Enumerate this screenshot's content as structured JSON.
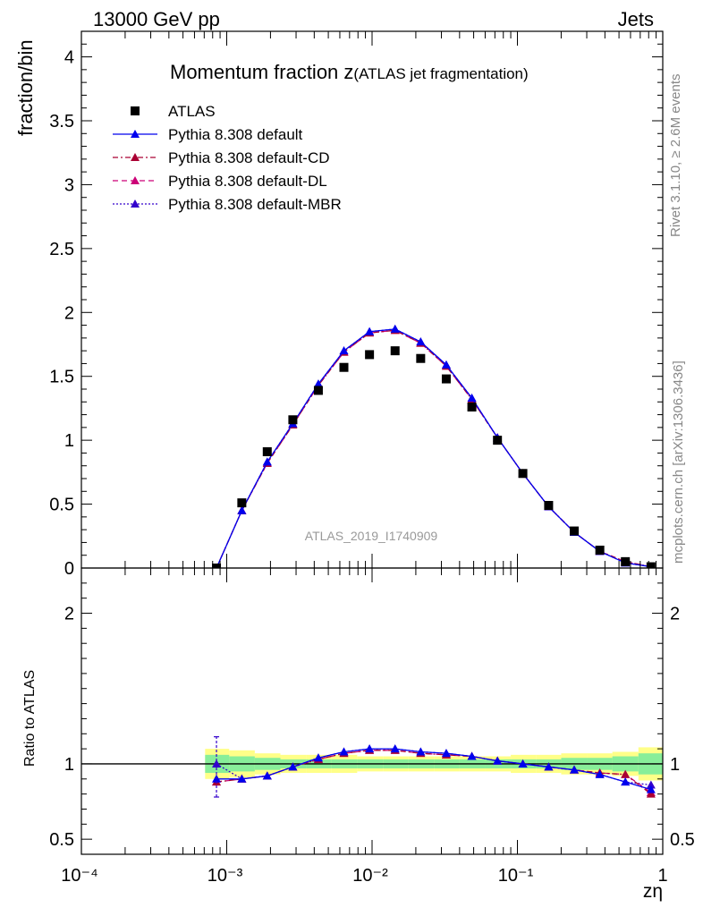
{
  "header": {
    "left": "13000 GeV pp",
    "right": "Jets"
  },
  "title": {
    "main": "Momentum fraction z",
    "sub": "(ATLAS jet fragmentation)"
  },
  "side_labels": {
    "rivet": "Rivet 3.1.10, ≥ 2.6M events",
    "mcplots": "mcplots.cern.ch [arXiv:1306.3436]"
  },
  "watermark": "ATLAS_2019_I1740909",
  "colors": {
    "data": "#000000",
    "default": "#0000ee",
    "cd": "#aa0033",
    "dl": "#cc0077",
    "mbr": "#3300cc",
    "band_inner": "#88ee99",
    "band_outer": "#ffff88"
  },
  "chart_data": [
    {
      "type": "scatter",
      "panel": "main",
      "ylabel": "fraction/bin",
      "xlabel": "zη",
      "xscale": "log",
      "xlim": [
        0.0001,
        1
      ],
      "ylim": [
        0,
        4.2
      ],
      "yticks": [
        "0",
        "0.5",
        "1",
        "1.5",
        "2",
        "2.5",
        "3",
        "3.5",
        "4"
      ],
      "xticks": [
        "10⁻⁴",
        "10⁻³",
        "10⁻²",
        "10⁻¹",
        "1"
      ],
      "legend_position": "top-left",
      "x": [
        0.00085,
        0.00127,
        0.0019,
        0.00285,
        0.00427,
        0.0064,
        0.0096,
        0.0144,
        0.0216,
        0.0324,
        0.0486,
        0.0729,
        0.109,
        0.164,
        0.246,
        0.369,
        0.553,
        0.83
      ],
      "series": [
        {
          "name": "ATLAS",
          "key": "data",
          "marker": "square",
          "line": "none",
          "values": [
            0.0,
            0.51,
            0.91,
            1.16,
            1.39,
            1.57,
            1.67,
            1.7,
            1.64,
            1.48,
            1.26,
            1.0,
            0.74,
            0.49,
            0.29,
            0.14,
            0.05,
            0.01
          ]
        },
        {
          "name": "Pythia 8.308 default",
          "key": "default",
          "marker": "triangle",
          "line": "solid",
          "values": [
            0.0,
            0.45,
            0.83,
            1.13,
            1.44,
            1.7,
            1.85,
            1.87,
            1.77,
            1.59,
            1.33,
            1.02,
            0.74,
            0.48,
            0.28,
            0.13,
            0.04,
            0.01
          ]
        },
        {
          "name": "Pythia 8.308 default-CD",
          "key": "cd",
          "marker": "triangle",
          "line": "dashdot",
          "values": [
            0.0,
            0.45,
            0.82,
            1.12,
            1.43,
            1.69,
            1.84,
            1.86,
            1.76,
            1.58,
            1.32,
            1.02,
            0.74,
            0.48,
            0.28,
            0.13,
            0.05,
            0.01
          ]
        },
        {
          "name": "Pythia 8.308 default-DL",
          "key": "dl",
          "marker": "triangle",
          "line": "dashed",
          "values": [
            0.0,
            0.45,
            0.82,
            1.12,
            1.43,
            1.69,
            1.84,
            1.86,
            1.76,
            1.58,
            1.32,
            1.02,
            0.74,
            0.48,
            0.28,
            0.13,
            0.05,
            0.01
          ]
        },
        {
          "name": "Pythia 8.308 default-MBR",
          "key": "mbr",
          "marker": "triangle",
          "line": "dotted",
          "values": [
            0.0,
            0.45,
            0.83,
            1.13,
            1.44,
            1.7,
            1.85,
            1.87,
            1.77,
            1.59,
            1.33,
            1.02,
            0.74,
            0.48,
            0.28,
            0.13,
            0.04,
            0.01
          ]
        }
      ]
    },
    {
      "type": "line",
      "panel": "ratio",
      "ylabel": "Ratio to ATLAS",
      "xlabel": "zη",
      "xscale": "log",
      "xlim": [
        0.0001,
        1
      ],
      "ylim": [
        0.4,
        2.3
      ],
      "yticks": [
        "0.5",
        "1",
        "2"
      ],
      "x": [
        0.00085,
        0.00127,
        0.0019,
        0.00285,
        0.00427,
        0.0064,
        0.0096,
        0.0144,
        0.0216,
        0.0324,
        0.0486,
        0.0729,
        0.109,
        0.164,
        0.246,
        0.369,
        0.553,
        0.83
      ],
      "bands": {
        "edges": [
          0.00071,
          0.00104,
          0.00156,
          0.00234,
          0.00351,
          0.00527,
          0.0079,
          0.0119,
          0.0178,
          0.0267,
          0.04,
          0.06,
          0.09,
          0.135,
          0.2,
          0.3,
          0.45,
          0.68,
          1.0
        ],
        "inner": [
          0.06,
          0.05,
          0.04,
          0.03,
          0.03,
          0.03,
          0.03,
          0.03,
          0.03,
          0.03,
          0.03,
          0.03,
          0.03,
          0.03,
          0.04,
          0.04,
          0.05,
          0.07
        ],
        "outer": [
          0.1,
          0.09,
          0.07,
          0.06,
          0.06,
          0.06,
          0.05,
          0.05,
          0.05,
          0.05,
          0.05,
          0.05,
          0.06,
          0.06,
          0.07,
          0.07,
          0.08,
          0.11
        ]
      },
      "series": [
        {
          "name": "Pythia 8.308 default",
          "key": "default",
          "values": [
            0.9,
            0.9,
            0.92,
            0.98,
            1.04,
            1.08,
            1.1,
            1.1,
            1.08,
            1.07,
            1.05,
            1.02,
            1.0,
            0.98,
            0.96,
            0.93,
            0.88,
            0.83
          ]
        },
        {
          "name": "Pythia 8.308 default-CD",
          "key": "cd",
          "values": [
            0.88,
            0.9,
            0.92,
            0.98,
            1.03,
            1.07,
            1.09,
            1.09,
            1.07,
            1.06,
            1.05,
            1.02,
            1.0,
            0.98,
            0.96,
            0.94,
            0.93,
            0.8
          ]
        },
        {
          "name": "Pythia 8.308 default-DL",
          "key": "dl",
          "values": [
            0.88,
            0.9,
            0.92,
            0.98,
            1.03,
            1.07,
            1.09,
            1.09,
            1.07,
            1.06,
            1.05,
            1.02,
            1.0,
            0.98,
            0.96,
            0.94,
            0.93,
            0.81
          ]
        },
        {
          "name": "Pythia 8.308 default-MBR",
          "key": "mbr",
          "values": [
            1.0,
            0.9,
            0.92,
            0.98,
            1.04,
            1.08,
            1.1,
            1.1,
            1.08,
            1.07,
            1.05,
            1.02,
            1.0,
            0.98,
            0.96,
            0.93,
            0.88,
            0.86
          ]
        }
      ],
      "first_point_error": [
        0.78,
        1.18
      ]
    }
  ]
}
